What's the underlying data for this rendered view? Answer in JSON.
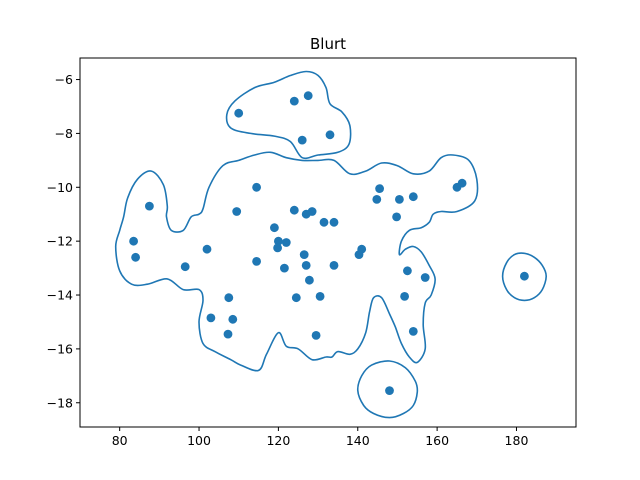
{
  "chart_data": {
    "type": "scatter",
    "title": "Blurt",
    "xlim": [
      70,
      195
    ],
    "ylim": [
      -18.9,
      -5.2
    ],
    "xticks": [
      80,
      100,
      120,
      140,
      160,
      180
    ],
    "yticks": [
      -6,
      -8,
      -10,
      -12,
      -14,
      -16,
      -18
    ],
    "grid": false,
    "point_color": "#1f77b4",
    "contour_color": "#1f77b4",
    "points": [
      {
        "x": 110,
        "y": -7.25
      },
      {
        "x": 124,
        "y": -6.8
      },
      {
        "x": 127.5,
        "y": -6.6
      },
      {
        "x": 126,
        "y": -8.25
      },
      {
        "x": 133,
        "y": -8.05
      },
      {
        "x": 87.5,
        "y": -10.7
      },
      {
        "x": 83.5,
        "y": -12.0
      },
      {
        "x": 84,
        "y": -12.6
      },
      {
        "x": 96.5,
        "y": -12.95
      },
      {
        "x": 102,
        "y": -12.3
      },
      {
        "x": 114.5,
        "y": -10.0
      },
      {
        "x": 109.5,
        "y": -10.9
      },
      {
        "x": 114.5,
        "y": -12.75
      },
      {
        "x": 119,
        "y": -11.5
      },
      {
        "x": 120,
        "y": -12.0
      },
      {
        "x": 119.8,
        "y": -12.25
      },
      {
        "x": 122,
        "y": -12.05
      },
      {
        "x": 121.5,
        "y": -13.0
      },
      {
        "x": 124,
        "y": -10.85
      },
      {
        "x": 127,
        "y": -11.0
      },
      {
        "x": 128.5,
        "y": -10.9
      },
      {
        "x": 131.5,
        "y": -11.3
      },
      {
        "x": 134,
        "y": -11.3
      },
      {
        "x": 126.5,
        "y": -12.5
      },
      {
        "x": 127,
        "y": -12.9
      },
      {
        "x": 127.8,
        "y": -13.45
      },
      {
        "x": 124.5,
        "y": -14.1
      },
      {
        "x": 130.5,
        "y": -14.05
      },
      {
        "x": 134,
        "y": -12.9
      },
      {
        "x": 129.5,
        "y": -15.5
      },
      {
        "x": 141,
        "y": -12.3
      },
      {
        "x": 140.3,
        "y": -12.5
      },
      {
        "x": 145.5,
        "y": -10.05
      },
      {
        "x": 144.8,
        "y": -10.45
      },
      {
        "x": 150.5,
        "y": -10.45
      },
      {
        "x": 154,
        "y": -10.35
      },
      {
        "x": 149.8,
        "y": -11.1
      },
      {
        "x": 152.5,
        "y": -13.1
      },
      {
        "x": 157,
        "y": -13.35
      },
      {
        "x": 151.8,
        "y": -14.05
      },
      {
        "x": 154,
        "y": -15.35
      },
      {
        "x": 165,
        "y": -10.0
      },
      {
        "x": 166.3,
        "y": -9.85
      },
      {
        "x": 107.5,
        "y": -14.1
      },
      {
        "x": 103,
        "y": -14.85
      },
      {
        "x": 108.5,
        "y": -14.9
      },
      {
        "x": 107.3,
        "y": -15.45
      },
      {
        "x": 182,
        "y": -13.3
      },
      {
        "x": 148,
        "y": -17.55
      }
    ],
    "contours": [
      [
        [
          107,
          -7.3
        ],
        [
          109,
          -6.8
        ],
        [
          114,
          -6.3
        ],
        [
          119,
          -6.1
        ],
        [
          123,
          -5.85
        ],
        [
          127,
          -5.7
        ],
        [
          130,
          -5.85
        ],
        [
          132,
          -6.3
        ],
        [
          133,
          -6.9
        ],
        [
          136,
          -7.2
        ],
        [
          138,
          -7.7
        ],
        [
          137.8,
          -8.4
        ],
        [
          135,
          -8.7
        ],
        [
          130,
          -8.8
        ],
        [
          126,
          -8.9
        ],
        [
          123,
          -8.3
        ],
        [
          119,
          -8.1
        ],
        [
          113,
          -8.0
        ],
        [
          108,
          -7.8
        ]
      ],
      [
        [
          79,
          -12.2
        ],
        [
          80,
          -11.6
        ],
        [
          81,
          -11.1
        ],
        [
          82,
          -10.4
        ],
        [
          84.5,
          -9.7
        ],
        [
          88,
          -9.4
        ],
        [
          91,
          -9.9
        ],
        [
          92,
          -10.7
        ],
        [
          91.8,
          -11.1
        ],
        [
          93,
          -11.6
        ],
        [
          96,
          -11.6
        ],
        [
          98,
          -11.1
        ],
        [
          100,
          -11.0
        ],
        [
          101,
          -10.8
        ],
        [
          102.5,
          -10.0
        ],
        [
          106,
          -9.2
        ],
        [
          110,
          -9.0
        ],
        [
          114,
          -8.8
        ],
        [
          118,
          -8.7
        ],
        [
          122,
          -8.9
        ],
        [
          126,
          -9.0
        ],
        [
          130,
          -9.0
        ],
        [
          134,
          -9.0
        ],
        [
          138,
          -9.5
        ],
        [
          142,
          -9.4
        ],
        [
          146,
          -9.1
        ],
        [
          150,
          -9.2
        ],
        [
          154,
          -9.5
        ],
        [
          158,
          -9.4
        ],
        [
          161,
          -8.9
        ],
        [
          164,
          -8.8
        ],
        [
          168,
          -9.0
        ],
        [
          170,
          -9.7
        ],
        [
          169.5,
          -10.5
        ],
        [
          165,
          -10.9
        ],
        [
          161,
          -10.9
        ],
        [
          159,
          -11.0
        ],
        [
          158,
          -11.3
        ],
        [
          156,
          -11.5
        ],
        [
          153,
          -11.6
        ],
        [
          151,
          -12.0
        ],
        [
          150.5,
          -12.5
        ],
        [
          152,
          -12.3
        ],
        [
          154,
          -12.2
        ],
        [
          156,
          -12.4
        ],
        [
          158,
          -12.9
        ],
        [
          159.5,
          -13.4
        ],
        [
          158.5,
          -14.0
        ],
        [
          157,
          -14.3
        ],
        [
          156.5,
          -15.1
        ],
        [
          157,
          -16.0
        ],
        [
          155,
          -16.5
        ],
        [
          153,
          -16.3
        ],
        [
          151,
          -15.8
        ],
        [
          149.5,
          -15.2
        ],
        [
          148,
          -14.7
        ],
        [
          146,
          -14.1
        ],
        [
          144,
          -14.1
        ],
        [
          143,
          -14.6
        ],
        [
          142,
          -15.4
        ],
        [
          140,
          -16.0
        ],
        [
          138,
          -16.2
        ],
        [
          135,
          -16.1
        ],
        [
          133.5,
          -16.3
        ],
        [
          132,
          -16.3
        ],
        [
          128.5,
          -16.4
        ],
        [
          125,
          -16.0
        ],
        [
          122,
          -15.9
        ],
        [
          120,
          -15.4
        ],
        [
          117,
          -16.2
        ],
        [
          115,
          -16.8
        ],
        [
          110.5,
          -16.6
        ],
        [
          108,
          -16.4
        ],
        [
          104,
          -16.1
        ],
        [
          101,
          -15.8
        ],
        [
          100,
          -15.0
        ],
        [
          101,
          -14.2
        ],
        [
          100,
          -13.8
        ],
        [
          96,
          -13.8
        ],
        [
          92,
          -13.4
        ],
        [
          87,
          -13.6
        ],
        [
          83,
          -13.6
        ],
        [
          80,
          -13.1
        ]
      ],
      [
        [
          176.5,
          -13.3
        ],
        [
          177.5,
          -12.8
        ],
        [
          179.5,
          -12.5
        ],
        [
          182,
          -12.45
        ],
        [
          184.5,
          -12.6
        ],
        [
          186.5,
          -12.9
        ],
        [
          187.5,
          -13.3
        ],
        [
          186.5,
          -13.8
        ],
        [
          184.5,
          -14.1
        ],
        [
          182,
          -14.2
        ],
        [
          179.5,
          -14.1
        ],
        [
          177.5,
          -13.8
        ]
      ],
      [
        [
          140,
          -17.55
        ],
        [
          141,
          -17.0
        ],
        [
          143.5,
          -16.6
        ],
        [
          148,
          -16.45
        ],
        [
          152,
          -16.7
        ],
        [
          154.5,
          -17.2
        ],
        [
          155,
          -17.6
        ],
        [
          154,
          -18.1
        ],
        [
          151.5,
          -18.4
        ],
        [
          148,
          -18.55
        ],
        [
          144,
          -18.4
        ],
        [
          141.5,
          -18.1
        ]
      ]
    ]
  }
}
